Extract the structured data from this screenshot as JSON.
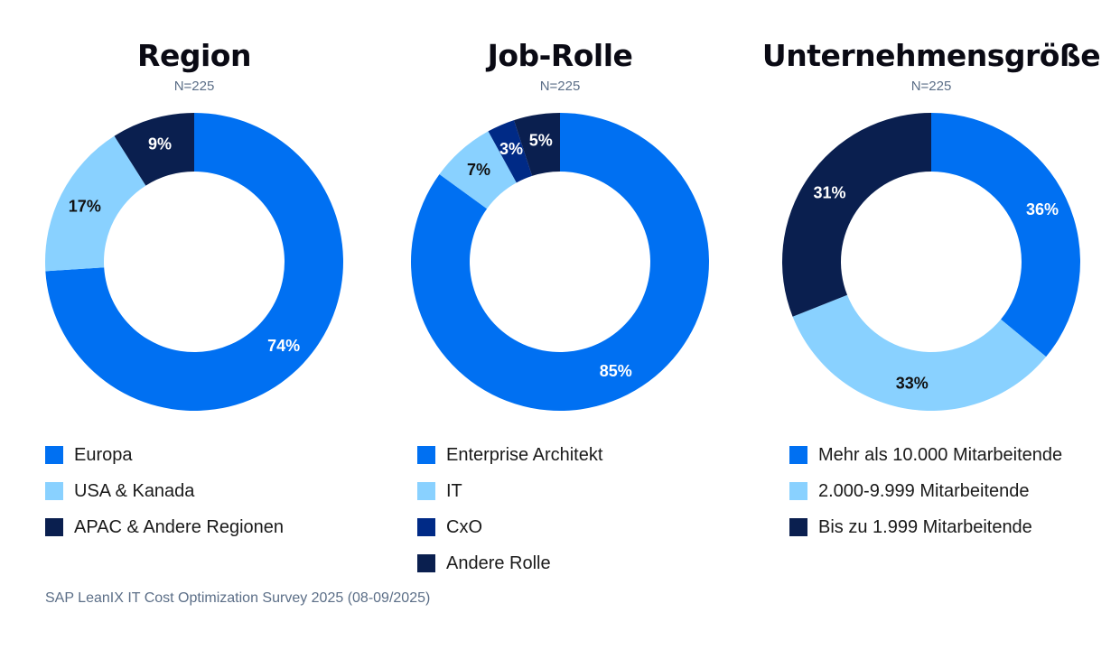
{
  "chart_data": [
    {
      "type": "pie",
      "title": "Region",
      "subtitle": "N=225",
      "labels": [
        "Europa",
        "USA & Kanada",
        "APAC & Andere Regionen"
      ],
      "values": [
        74,
        17,
        9
      ],
      "value_labels": [
        "74%",
        "17%",
        "9%"
      ],
      "colors": [
        "#0070f2",
        "#89d1ff",
        "#0a1f4f"
      ],
      "label_colors": [
        "#ffffff",
        "#111111",
        "#ffffff"
      ],
      "legend": "bottom"
    },
    {
      "type": "pie",
      "title": "Job-Rolle",
      "subtitle": "N=225",
      "labels": [
        "Enterprise Architekt",
        "IT",
        "CxO",
        "Andere Rolle"
      ],
      "values": [
        85,
        7,
        3,
        5
      ],
      "value_labels": [
        "85%",
        "7%",
        "3%",
        "5%"
      ],
      "colors": [
        "#0070f2",
        "#89d1ff",
        "#002a86",
        "#0a1f4f"
      ],
      "label_colors": [
        "#ffffff",
        "#111111",
        "#ffffff",
        "#ffffff"
      ],
      "legend": "bottom"
    },
    {
      "type": "pie",
      "title": "Unternehmensgröße",
      "subtitle": "N=225",
      "labels": [
        "Mehr als 10.000 Mitarbeitende",
        "2.000-9.999 Mitarbeitende",
        "Bis zu 1.999 Mitarbeitende"
      ],
      "values": [
        36,
        33,
        31
      ],
      "value_labels": [
        "36%",
        "33%",
        "31%"
      ],
      "colors": [
        "#0070f2",
        "#89d1ff",
        "#0a1f4f"
      ],
      "label_colors": [
        "#ffffff",
        "#111111",
        "#ffffff"
      ],
      "legend": "bottom"
    }
  ],
  "footer": "SAP LeanIX IT Cost Optimization Survey 2025 (08-09/2025)"
}
